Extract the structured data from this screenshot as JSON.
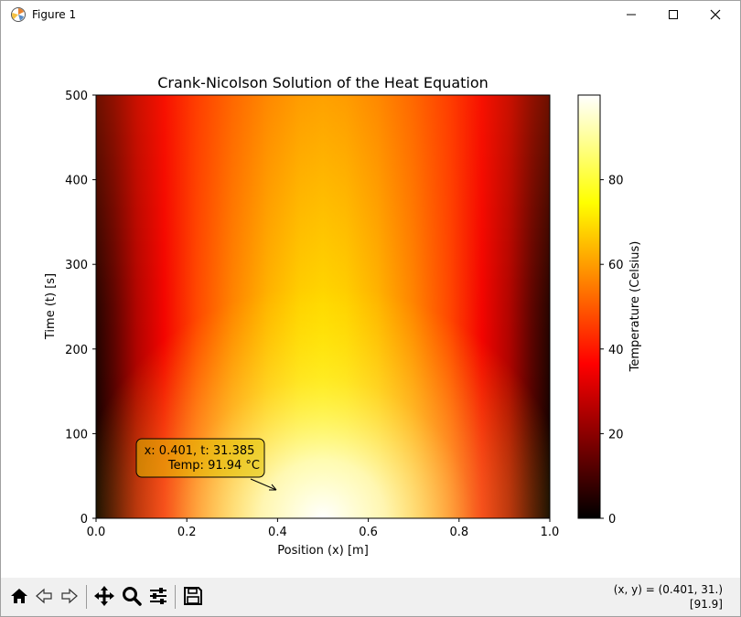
{
  "window": {
    "title": "Figure 1"
  },
  "chart_data": {
    "type": "heatmap",
    "title": "Crank-Nicolson Solution of the Heat Equation",
    "xlabel": "Position (x) [m]",
    "ylabel": "Time (t) [s]",
    "xlim": [
      0.0,
      1.0
    ],
    "ylim": [
      0,
      500
    ],
    "x_ticks": [
      "0.0",
      "0.2",
      "0.4",
      "0.6",
      "0.8",
      "1.0"
    ],
    "y_ticks": [
      "0",
      "100",
      "200",
      "300",
      "400",
      "500"
    ],
    "colormap": "hot",
    "colorbar": {
      "label": "Temperature (Celsius)",
      "range": [
        0,
        100
      ],
      "ticks": [
        "0",
        "20",
        "40",
        "60",
        "80"
      ]
    },
    "annotation": {
      "line1": "x: 0.401, t: 31.385",
      "line2": "Temp: 91.94 °C",
      "point": {
        "x": 0.401,
        "t": 31.385
      }
    }
  },
  "status": {
    "coords": "(x, y) = (0.401, 31.)",
    "value": "[91.9]"
  },
  "toolbar": {
    "buttons": [
      "home-icon",
      "back-icon",
      "forward-icon",
      "pan-icon",
      "zoom-icon",
      "configure-icon",
      "save-icon"
    ]
  }
}
